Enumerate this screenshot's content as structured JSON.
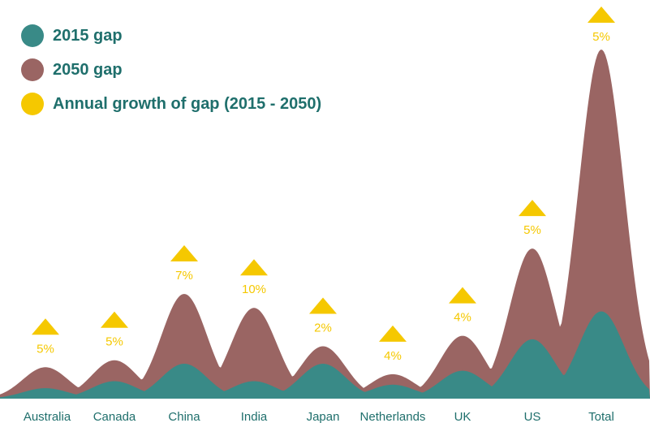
{
  "chart_data": {
    "type": "area",
    "categories": [
      "Australia",
      "Canada",
      "China",
      "India",
      "Japan",
      "Netherlands",
      "UK",
      "US",
      "Total"
    ],
    "series": [
      {
        "name": "2050 gap",
        "values": [
          9,
          11,
          30,
          26,
          15,
          7,
          18,
          43,
          100
        ],
        "color": "#9a6563"
      },
      {
        "name": "2015 gap",
        "values": [
          3,
          5,
          10,
          5,
          10,
          4,
          8,
          17,
          25
        ],
        "color": "#398a87"
      }
    ],
    "annual_growth": {
      "name": "Annual growth of gap (2015 - 2050)",
      "color": "#f5c800",
      "labels": [
        "5%",
        "5%",
        "7%",
        "10%",
        "2%",
        "4%",
        "4%",
        "5%",
        "5%"
      ]
    },
    "ylim": [
      0,
      100
    ],
    "legend_position": "top-left",
    "grid": false
  },
  "legend": [
    {
      "label": "2015 gap",
      "color": "#398a87"
    },
    {
      "label": "2050 gap",
      "color": "#9a6563"
    },
    {
      "label": "Annual growth of gap (2015 - 2050)",
      "color": "#f5c800"
    }
  ]
}
